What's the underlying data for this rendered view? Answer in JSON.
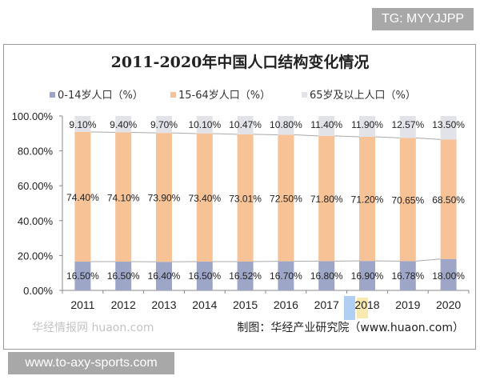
{
  "watermark_top": "TG: MYYJJPP",
  "watermark_bottom": "www.to-axy-sports.com",
  "chart_data": {
    "type": "bar",
    "stacked": true,
    "title": "2011-2020年中国人口结构变化情况",
    "categories": [
      "2011",
      "2012",
      "2013",
      "2014",
      "2015",
      "2016",
      "2017",
      "2018",
      "2019",
      "2020"
    ],
    "series": [
      {
        "name": "0-14岁人口（%）",
        "color": "#9ea6c8",
        "values": [
          16.5,
          16.5,
          16.4,
          16.5,
          16.52,
          16.7,
          16.8,
          16.9,
          16.78,
          18.0
        ],
        "labels": [
          "16.50%",
          "16.50%",
          "16.40%",
          "16.50%",
          "16.52%",
          "16.70%",
          "16.80%",
          "16.90%",
          "16.78%",
          "18.00%"
        ]
      },
      {
        "name": "15-64岁人口（%）",
        "color": "#f7c295",
        "values": [
          74.4,
          74.1,
          73.9,
          73.4,
          73.01,
          72.5,
          71.8,
          71.2,
          70.65,
          68.5
        ],
        "labels": [
          "74.40%",
          "74.10%",
          "73.90%",
          "73.40%",
          "73.01%",
          "72.50%",
          "71.80%",
          "71.20%",
          "70.65%",
          "68.50%"
        ]
      },
      {
        "name": "65岁及以上人口（%）",
        "color": "#e1e3e9",
        "values": [
          9.1,
          9.4,
          9.7,
          10.1,
          10.47,
          10.8,
          11.4,
          11.9,
          12.57,
          13.5
        ],
        "labels": [
          "9.10%",
          "9.40%",
          "9.70%",
          "10.10%",
          "10.47%",
          "10.80%",
          "11.40%",
          "11.90%",
          "12.57%",
          "13.50%"
        ]
      }
    ],
    "yticks": [
      "0.00%",
      "20.00%",
      "40.00%",
      "60.00%",
      "80.00%",
      "100.00%"
    ],
    "ylim": [
      0,
      100
    ],
    "legend": "top",
    "grid": false,
    "source": "制图：华经产业研究院（www.huaon.com）",
    "logo_watermark": "华经情报网 huaon.com"
  }
}
